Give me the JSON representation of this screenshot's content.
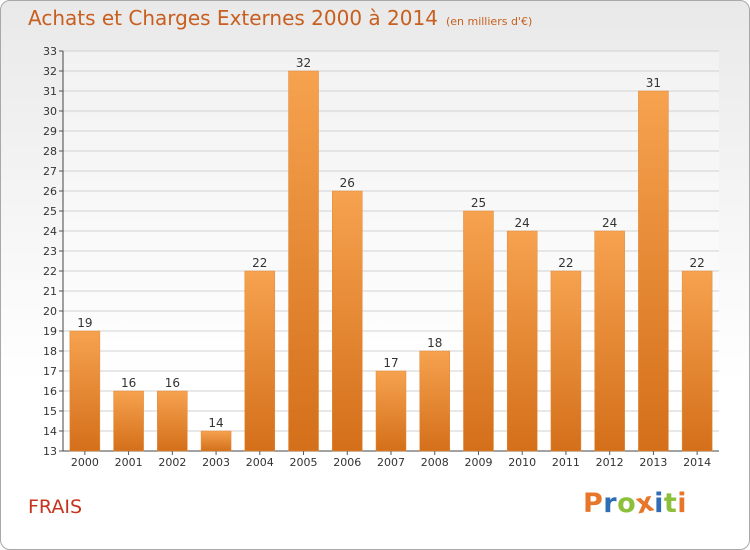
{
  "header": {
    "title": "Achats et Charges Externes 2000 à 2014",
    "subtitle": "(en milliers d'€)"
  },
  "footer": {
    "town": "FRAIS",
    "logo_text": "Proxiti"
  },
  "colors": {
    "bar_light": "#f6a24f",
    "bar_dark": "#d46f1a",
    "title": "#c85f1e",
    "town": "#c8321e",
    "logo_letters": [
      "#e8762a",
      "#2f6db5",
      "#8cbf3a",
      "#e8762a",
      "#2f6db5",
      "#8cbf3a",
      "#e8762a"
    ]
  },
  "chart_data": {
    "type": "bar",
    "title": "Achats et Charges Externes 2000 à 2014",
    "subtitle": "(en milliers d'€)",
    "categories": [
      "2000",
      "2001",
      "2002",
      "2003",
      "2004",
      "2005",
      "2006",
      "2007",
      "2008",
      "2009",
      "2010",
      "2011",
      "2012",
      "2013",
      "2014"
    ],
    "values": [
      19,
      16,
      16,
      14,
      22,
      32,
      26,
      17,
      18,
      25,
      24,
      22,
      24,
      31,
      22
    ],
    "data_labels": [
      "19",
      "16",
      "16",
      "14",
      "22",
      "32",
      "26",
      "17",
      "18",
      "25",
      "24",
      "22",
      "24",
      "31",
      "22"
    ],
    "ylim": [
      13,
      33
    ],
    "yticks": [
      13,
      14,
      15,
      16,
      17,
      18,
      19,
      20,
      21,
      22,
      23,
      24,
      25,
      26,
      27,
      28,
      29,
      30,
      31,
      32,
      33
    ],
    "grid": true,
    "xlabel": "",
    "ylabel": ""
  }
}
